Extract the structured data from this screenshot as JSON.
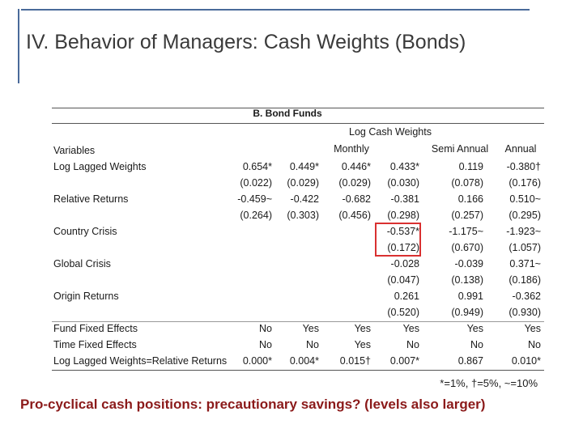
{
  "slide": {
    "title": "IV. Behavior of Managers: Cash Weights (Bonds)",
    "tagline": "Pro-cyclical cash positions: precautionary savings? (levels also larger)",
    "footnote": "*=1%, †=5%, ~=10%"
  },
  "table": {
    "panel_title": "B. Bond Funds",
    "dependent_header": "Log Cash Weights",
    "group_headers": {
      "monthly": "Monthly",
      "semi_annual": "Semi Annual",
      "annual": "Annual"
    },
    "variables_header": "Variables",
    "row_labels": {
      "log_lagged_weights": "Log Lagged Weights",
      "relative_returns": "Relative Returns",
      "country_crisis": "Country Crisis",
      "global_crisis": "Global Crisis",
      "origin_returns": "Origin Returns",
      "fund_fixed_effects": "Fund Fixed Effects",
      "time_fixed_effects": "Time Fixed Effects",
      "lw_equals_rr": "Log Lagged Weights=Relative Returns"
    },
    "columns": [
      {
        "llw": "0.654*",
        "llw_se": "(0.022)",
        "rr": "-0.459~",
        "rr_se": "(0.264)",
        "cc": "",
        "cc_se": "",
        "gc": "",
        "gc_se": "",
        "or": "",
        "or_se": "",
        "ffe": "No",
        "tfe": "No",
        "test": "0.000*"
      },
      {
        "llw": "0.449*",
        "llw_se": "(0.029)",
        "rr": "-0.422",
        "rr_se": "(0.303)",
        "cc": "",
        "cc_se": "",
        "gc": "",
        "gc_se": "",
        "or": "",
        "or_se": "",
        "ffe": "Yes",
        "tfe": "No",
        "test": "0.004*"
      },
      {
        "llw": "0.446*",
        "llw_se": "(0.029)",
        "rr": "-0.682",
        "rr_se": "(0.456)",
        "cc": "",
        "cc_se": "",
        "gc": "",
        "gc_se": "",
        "or": "",
        "or_se": "",
        "ffe": "Yes",
        "tfe": "Yes",
        "test": "0.015†"
      },
      {
        "llw": "0.433*",
        "llw_se": "(0.030)",
        "rr": "-0.381",
        "rr_se": "(0.298)",
        "cc": "-0.537*",
        "cc_se": "(0.172)",
        "gc": "-0.028",
        "gc_se": "(0.047)",
        "or": "0.261",
        "or_se": "(0.520)",
        "ffe": "Yes",
        "tfe": "No",
        "test": "0.007*"
      },
      {
        "llw": "0.119",
        "llw_se": "(0.078)",
        "rr": "0.166",
        "rr_se": "(0.257)",
        "cc": "-1.175~",
        "cc_se": "(0.670)",
        "gc": "-0.039",
        "gc_se": "(0.138)",
        "or": "0.991",
        "or_se": "(0.949)",
        "ffe": "Yes",
        "tfe": "No",
        "test": "0.867"
      },
      {
        "llw": "-0.380†",
        "llw_se": "(0.176)",
        "rr": "0.510~",
        "rr_se": "(0.295)",
        "cc": "-1.923~",
        "cc_se": "(1.057)",
        "gc": "0.371~",
        "gc_se": "(0.186)",
        "or": "-0.362",
        "or_se": "(0.930)",
        "ffe": "Yes",
        "tfe": "No",
        "test": "0.010*"
      }
    ]
  }
}
